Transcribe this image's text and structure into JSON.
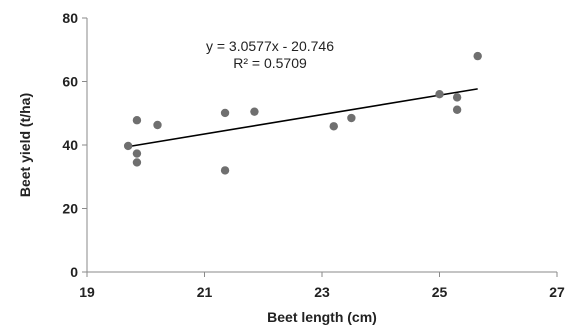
{
  "chart_data": {
    "type": "scatter",
    "title": "",
    "xlabel": "Beet length (cm)",
    "ylabel": "Beet yield (t/ha)",
    "xlim": [
      19,
      27
    ],
    "ylim": [
      0,
      80
    ],
    "x_ticks": [
      19,
      21,
      23,
      25,
      27
    ],
    "y_ticks": [
      0,
      20,
      40,
      60,
      80
    ],
    "x_tick_labels": [
      "19",
      "21",
      "23",
      "25",
      "27"
    ],
    "y_tick_labels": [
      "0",
      "20",
      "40",
      "60",
      "80"
    ],
    "grid": false,
    "legend": "none",
    "series": [
      {
        "points": [
          {
            "x": 19.7,
            "y": 39.7
          },
          {
            "x": 19.85,
            "y": 47.8
          },
          {
            "x": 19.85,
            "y": 37.3
          },
          {
            "x": 19.85,
            "y": 34.5
          },
          {
            "x": 20.2,
            "y": 46.3
          },
          {
            "x": 21.35,
            "y": 50.1
          },
          {
            "x": 21.35,
            "y": 32.0
          },
          {
            "x": 21.85,
            "y": 50.5
          },
          {
            "x": 23.2,
            "y": 45.9
          },
          {
            "x": 23.5,
            "y": 48.5
          },
          {
            "x": 25.0,
            "y": 56.0
          },
          {
            "x": 25.3,
            "y": 55.0
          },
          {
            "x": 25.3,
            "y": 51.1
          },
          {
            "x": 25.65,
            "y": 68.0
          }
        ]
      }
    ],
    "trendline": {
      "type": "linear",
      "slope": 3.0577,
      "intercept": -20.746,
      "x_range": [
        19.7,
        25.65
      ],
      "equation_label": "y = 3.0577x - 20.746",
      "r2_label": "R² = 0.5709"
    },
    "colors": {
      "marker": "#6f6f6f",
      "trendline": "#000000",
      "axis": "#8a8a8a",
      "text": "#222222"
    }
  }
}
